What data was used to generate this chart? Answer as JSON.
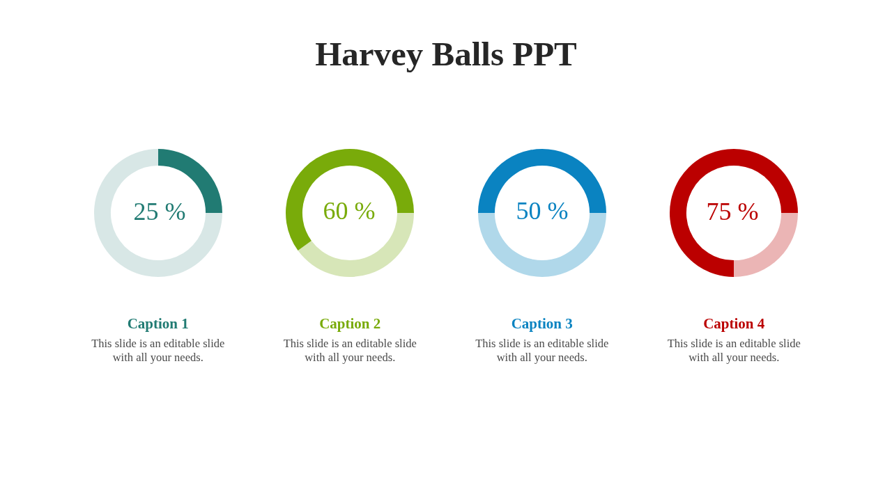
{
  "chart_data": [
    {
      "type": "other",
      "title": "Harvey Balls PPT"
    },
    {
      "type": "donut",
      "title": "Caption 1",
      "annotations": [
        "This slide is an editable slide with all your needs."
      ],
      "categories": [
        null,
        null
      ],
      "values": [
        75,
        25
      ],
      "colors": [
        "#d8e7e6",
        "#217b73"
      ],
      "value_labels": [
        null,
        "25 %"
      ]
    },
    {
      "type": "donut",
      "title": "Caption 2",
      "annotations": [
        "This slide is an editable slide with all your needs."
      ],
      "categories": [
        null,
        null
      ],
      "values": [
        40,
        60
      ],
      "colors": [
        "#d7e6b8",
        "#79ab0a"
      ],
      "value_labels": [
        null,
        "60 %"
      ]
    },
    {
      "type": "donut",
      "title": "Caption 3",
      "annotations": [
        "This slide is an editable slide with all your needs."
      ],
      "categories": [
        null,
        null
      ],
      "values": [
        50,
        50
      ],
      "colors": [
        "#b0d8ea",
        "#0a83c1"
      ],
      "value_labels": [
        null,
        "50 %"
      ]
    },
    {
      "type": "donut",
      "title": "Caption 4",
      "annotations": [
        "This slide is an editable slide with all your needs."
      ],
      "categories": [
        null,
        null
      ],
      "values": [
        25,
        75
      ],
      "colors": [
        "#ebb5b5",
        "#bb0000"
      ],
      "value_labels": [
        null,
        "75 %"
      ]
    }
  ]
}
